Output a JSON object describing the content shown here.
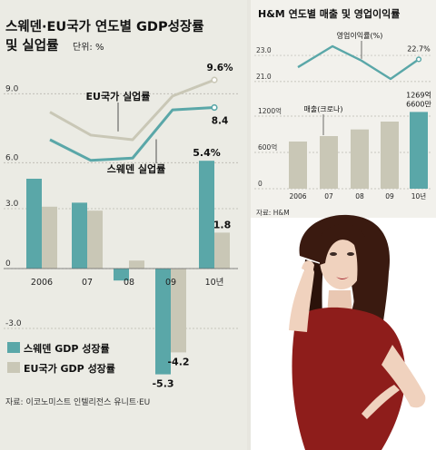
{
  "left_panel": {
    "title_line1": "스웨덴·EU국가 연도별 GDP성장률",
    "title_line2": "및 실업률",
    "unit": "단위: %",
    "source": "자료: 이코노미스트 인텔리전스 유니트·EU",
    "legend": [
      {
        "label": "스웨덴 GDP 성장률",
        "color": "#5aa7a8"
      },
      {
        "label": "EU국가 GDP 성장률",
        "color": "#c9c7b6"
      }
    ]
  },
  "right_panel": {
    "title": "H&M 연도별 매출 및 영업이익률",
    "source": "자료: H&M"
  },
  "colors": {
    "teal": "#5aa7a8",
    "beige": "#c9c7b6",
    "left_bg": "#ebebe4",
    "right_bg": "#f2f1ec",
    "photo_bg": "#ffffff",
    "divider": "#e7e6df"
  },
  "chart_data": [
    {
      "type": "line",
      "chart": "unemployment",
      "x": [
        "2006",
        "07",
        "08",
        "09",
        "10년"
      ],
      "yticks": [
        "9.0",
        "6.0"
      ],
      "ylim": [
        5.5,
        10
      ],
      "series": [
        {
          "name": "EU국가 실업률",
          "values": [
            8.2,
            7.2,
            7.0,
            8.9,
            9.6
          ],
          "color": "#c9c7b6",
          "end_label": "9.6%"
        },
        {
          "name": "스웨덴 실업률",
          "values": [
            7.0,
            6.1,
            6.2,
            8.3,
            8.4
          ],
          "color": "#5aa7a8",
          "end_label": "8.4"
        }
      ]
    },
    {
      "type": "bar",
      "chart": "gdp_growth",
      "categories": [
        "2006",
        "07",
        "08",
        "09",
        "10년"
      ],
      "yticks": [
        "3.0",
        "0",
        "-3.0"
      ],
      "ylim": [
        -6,
        6.5
      ],
      "series": [
        {
          "name": "스웨덴 GDP 성장률",
          "values": [
            4.5,
            3.3,
            -0.6,
            -5.3,
            5.4
          ],
          "color": "#5aa7a8"
        },
        {
          "name": "EU국가 GDP 성장률",
          "values": [
            3.1,
            2.9,
            0.4,
            -4.2,
            1.8
          ],
          "color": "#c9c7b6"
        }
      ],
      "data_labels": [
        {
          "series": 0,
          "index": 3,
          "text": "-5.3"
        },
        {
          "series": 1,
          "index": 3,
          "text": "-4.2"
        },
        {
          "series": 0,
          "index": 4,
          "text": "5.4%"
        },
        {
          "series": 1,
          "index": 4,
          "text": "1.8"
        }
      ]
    },
    {
      "type": "line",
      "chart": "operating_margin",
      "x": [
        "2006",
        "07",
        "08",
        "09",
        "10년"
      ],
      "yticks": [
        "23.0",
        "21.0"
      ],
      "ylim": [
        20.3,
        24.6
      ],
      "series": [
        {
          "name": "영업이익률(%)",
          "values": [
            22.1,
            23.7,
            22.6,
            21.2,
            22.7
          ],
          "color": "#5aa7a8",
          "end_label": "22.7%"
        }
      ]
    },
    {
      "type": "bar",
      "chart": "sales",
      "categories": [
        "2006",
        "07",
        "08",
        "09",
        "10년"
      ],
      "yticks": [
        "1200억",
        "600억",
        "0"
      ],
      "ylim": [
        0,
        1500
      ],
      "series": [
        {
          "name": "매출(크로나)",
          "values": [
            780,
            870,
            980,
            1110,
            1269
          ],
          "color": "#c9c7b6"
        }
      ],
      "highlight_color": "#5aa7a8",
      "data_labels": [
        {
          "series": 0,
          "index": 4,
          "text": "1269억\n6600만"
        }
      ]
    }
  ]
}
